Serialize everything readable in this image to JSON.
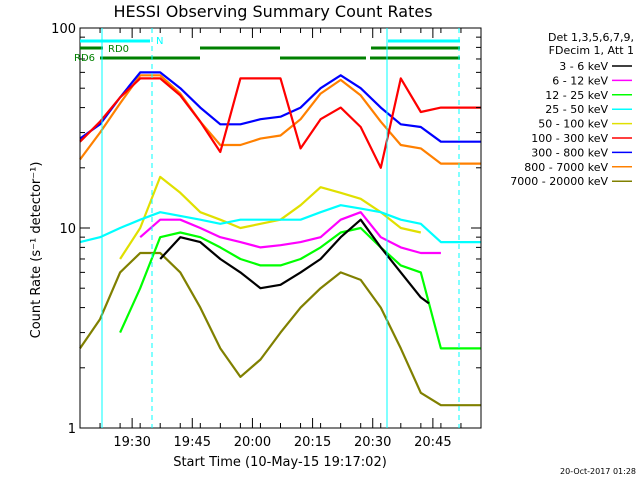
{
  "chart_data": {
    "type": "line",
    "title": "HESSI Observing Summary Count Rates",
    "xlabel": "Start Time (10-May-15 19:17:02)",
    "ylabel": "Count Rate (s⁻¹ detector⁻¹)",
    "y_scale": "log",
    "ylim": [
      1,
      100
    ],
    "xlim_minutes_after_start": [
      0,
      100
    ],
    "x_ticks": [
      "19:30",
      "19:45",
      "20:00",
      "20:15",
      "20:30",
      "20:45"
    ],
    "y_ticks": [
      "1",
      "10",
      "100"
    ],
    "legend_placement": "right",
    "legend_header": [
      "Det 1,3,5,6,7,9,",
      "FDecim 1, Att 1"
    ],
    "series": [
      {
        "name": "3 - 6 keV",
        "color": "#000000",
        "x": [
          20,
          25,
          30,
          35,
          40,
          45,
          50,
          55,
          60,
          65,
          70,
          75,
          80,
          85,
          87
        ],
        "values": [
          7,
          9,
          8.5,
          7,
          6,
          5,
          5.2,
          6,
          7,
          9,
          11,
          8,
          6,
          4.5,
          4.2
        ]
      },
      {
        "name": "6 - 12 keV",
        "color": "#ff00ff",
        "x": [
          15,
          20,
          25,
          30,
          35,
          40,
          45,
          50,
          55,
          60,
          65,
          70,
          75,
          80,
          85,
          90
        ],
        "values": [
          9,
          11,
          11,
          10,
          9,
          8.5,
          8,
          8.2,
          8.5,
          9,
          11,
          12,
          9,
          8,
          7.5,
          7.5
        ]
      },
      {
        "name": "12 - 25 keV",
        "color": "#00ff00",
        "x": [
          10,
          15,
          20,
          25,
          30,
          35,
          40,
          45,
          50,
          55,
          60,
          65,
          70,
          75,
          80,
          85,
          90,
          100
        ],
        "values": [
          3,
          5,
          9,
          9.5,
          9,
          8,
          7,
          6.5,
          6.5,
          7,
          8,
          9.5,
          10,
          8,
          6.5,
          6,
          2.5,
          2.5
        ]
      },
      {
        "name": "25 - 50 keV",
        "color": "#00ffff",
        "x": [
          0,
          5,
          10,
          15,
          20,
          25,
          30,
          35,
          40,
          45,
          50,
          55,
          60,
          65,
          70,
          75,
          80,
          85,
          90,
          100
        ],
        "values": [
          8.5,
          9,
          10,
          11,
          12,
          11.5,
          11,
          10.5,
          11,
          11,
          11,
          11,
          12,
          13,
          12.5,
          12,
          11,
          10.5,
          8.5,
          8.5
        ]
      },
      {
        "name": "50 - 100 keV",
        "color": "#e0e000",
        "x": [
          10,
          15,
          20,
          25,
          30,
          35,
          40,
          45,
          50,
          55,
          60,
          65,
          70,
          75,
          80,
          85
        ],
        "values": [
          7,
          10,
          18,
          15,
          12,
          11,
          10,
          10.5,
          11,
          13,
          16,
          15,
          14,
          12,
          10,
          9.5
        ]
      },
      {
        "name": "100 - 300 keV",
        "color": "#ff0000",
        "x": [
          0,
          5,
          10,
          15,
          20,
          25,
          30,
          35,
          40,
          45,
          50,
          55,
          60,
          65,
          70,
          75,
          80,
          85,
          90,
          100
        ],
        "values": [
          27,
          34,
          45,
          56,
          56,
          46,
          34,
          24,
          56,
          56,
          56,
          25,
          35,
          40,
          32,
          20,
          56,
          38,
          40,
          40
        ]
      },
      {
        "name": "300 - 800 keV",
        "color": "#0000ff",
        "x": [
          0,
          5,
          10,
          15,
          20,
          25,
          30,
          35,
          40,
          45,
          50,
          55,
          60,
          65,
          70,
          75,
          80,
          85,
          90,
          100
        ],
        "values": [
          28,
          33,
          45,
          60,
          60,
          50,
          40,
          33,
          33,
          35,
          36,
          40,
          50,
          58,
          50,
          40,
          33,
          32,
          27,
          27
        ]
      },
      {
        "name": "800 - 7000 keV",
        "color": "#ff8000",
        "x": [
          0,
          5,
          10,
          15,
          20,
          25,
          30,
          35,
          40,
          45,
          50,
          55,
          60,
          65,
          70,
          75,
          80,
          85,
          90,
          100
        ],
        "values": [
          22,
          30,
          42,
          58,
          58,
          47,
          34,
          26,
          26,
          28,
          29,
          35,
          47,
          55,
          46,
          34,
          26,
          25,
          21,
          21
        ]
      },
      {
        "name": "7000 - 20000 keV",
        "color": "#808000",
        "x": [
          0,
          5,
          10,
          15,
          20,
          25,
          30,
          35,
          40,
          45,
          50,
          55,
          60,
          65,
          70,
          75,
          80,
          85,
          90,
          100
        ],
        "values": [
          2.5,
          3.5,
          6,
          7.5,
          7.5,
          6,
          4,
          2.5,
          1.8,
          2.2,
          3,
          4,
          5,
          6,
          5.5,
          4,
          2.5,
          1.5,
          1.3,
          1.3
        ]
      }
    ],
    "annotations": [
      {
        "label": "N",
        "color": "#00ffff"
      },
      {
        "label": "RD0",
        "color": "#008000"
      },
      {
        "label": "RD6",
        "color": "#008000"
      }
    ],
    "timestamp": "20-Oct-2017 01:28"
  }
}
